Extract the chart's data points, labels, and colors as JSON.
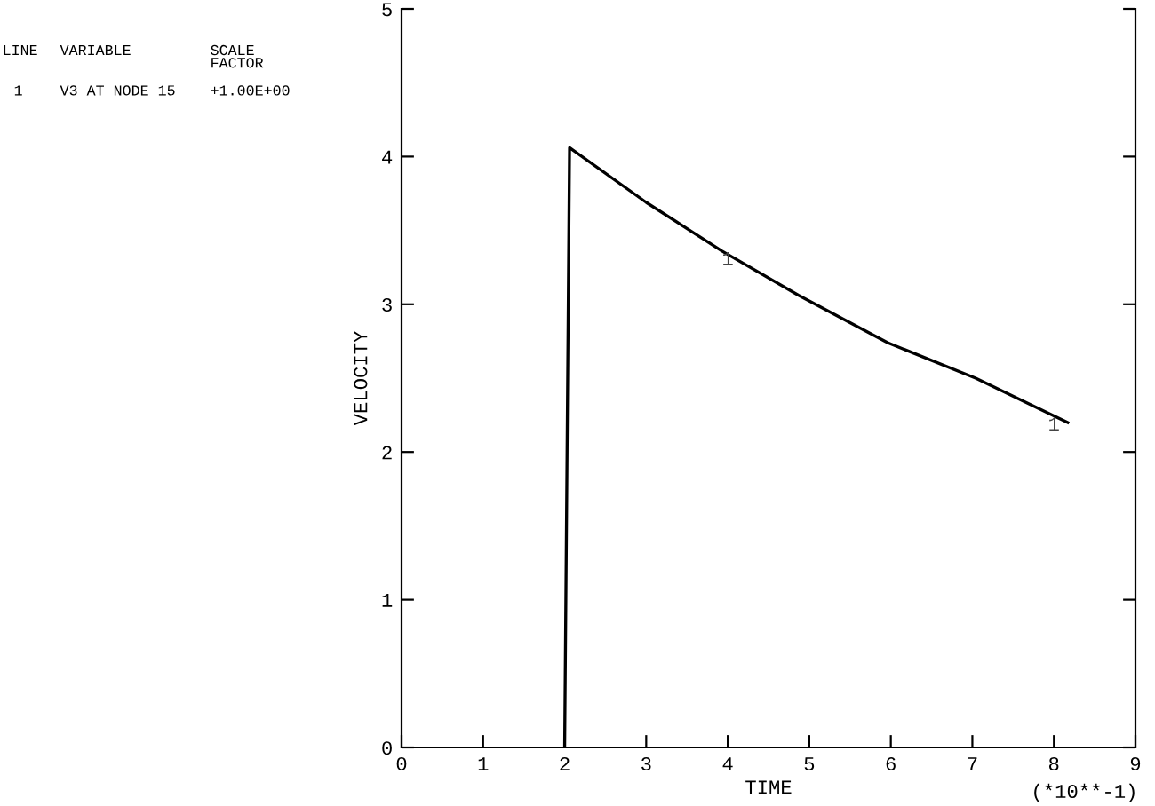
{
  "chart_data": {
    "type": "line",
    "xlabel": "TIME",
    "ylabel": "VELOCITY",
    "series": [
      {
        "color": "#000000",
        "x": [
          2.0,
          2.06,
          3.0,
          3.93,
          4.87,
          5.96,
          7.04,
          8.17
        ],
        "values": [
          0,
          4.06,
          3.69,
          3.36,
          3.06,
          2.74,
          2.5,
          2.2
        ]
      }
    ],
    "xlim": [
      0,
      9
    ],
    "ylim": [
      0,
      5
    ],
    "xticks": [
      0,
      1,
      2,
      3,
      4,
      5,
      6,
      7,
      8,
      9
    ],
    "yticks": [
      0,
      1,
      2,
      3,
      4,
      5
    ],
    "grid": false,
    "legend": false,
    "marker": "none",
    "line_style": "solid",
    "annotations": [
      {
        "text": "1",
        "x": 4,
        "y": 3.3
      },
      {
        "text": "1",
        "x": 8,
        "y": 2.18
      },
      "LINE",
      "VARIABLE",
      "SCALE\nFACTOR",
      "1",
      "V3 AT NODE 15",
      "+1.00E+00",
      "(*10**-1)"
    ]
  }
}
